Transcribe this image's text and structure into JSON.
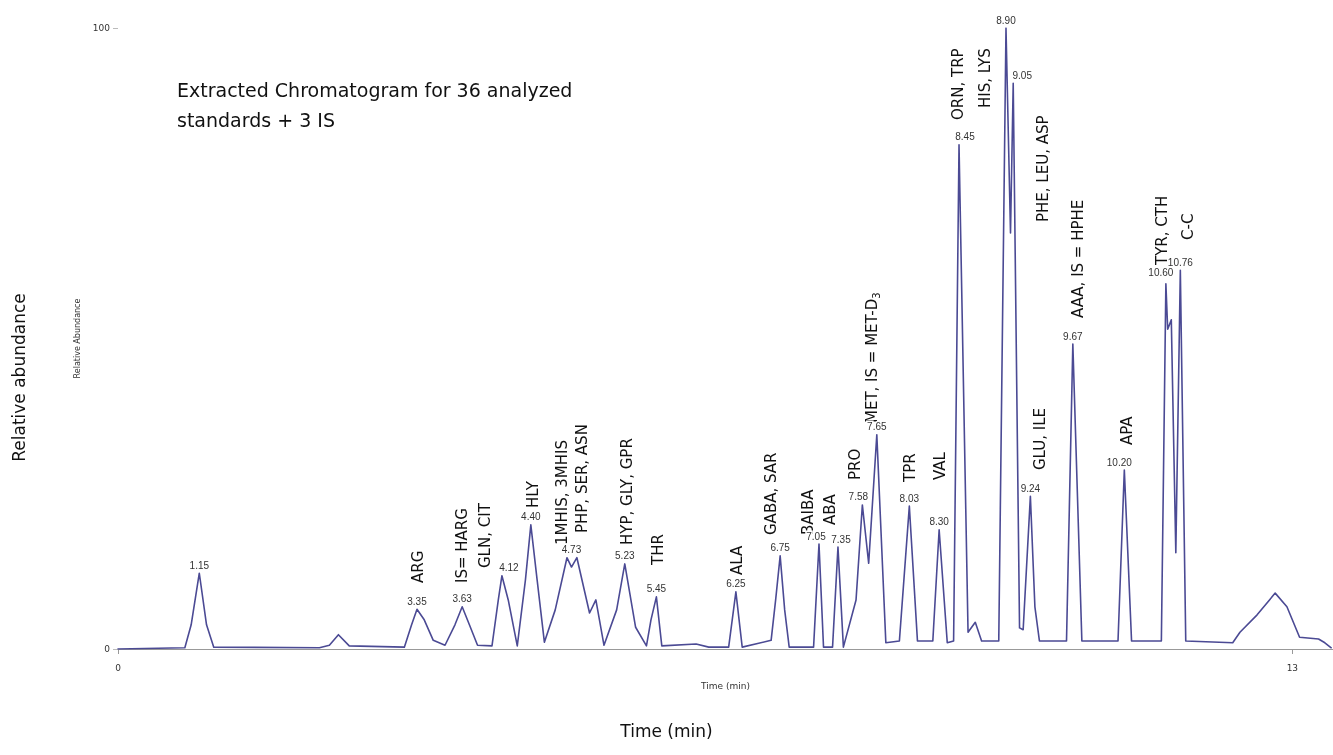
{
  "chart_data": {
    "type": "line",
    "title": "Extracted Chromatogram for 36 analyzed standards + 3 IS",
    "xlabel": "Time (min)",
    "ylabel": "Relative Abundance",
    "color": "#4b4a94",
    "xlim": [
      0,
      13.45
    ],
    "xticks": [
      0,
      13
    ],
    "ylim": [
      0,
      100
    ],
    "yticks": [
      0,
      100
    ],
    "x": [
      0,
      0.74,
      0.81,
      0.9,
      0.98,
      1.06,
      2.23,
      2.34,
      2.44,
      2.56,
      3.17,
      3.25,
      3.31,
      3.39,
      3.49,
      3.62,
      3.73,
      3.81,
      3.89,
      3.98,
      4.14,
      4.21,
      4.25,
      4.32,
      4.42,
      4.51,
      4.57,
      4.64,
      4.72,
      4.84,
      4.97,
      5.02,
      5.08,
      5.22,
      5.29,
      5.38,
      5.52,
      5.61,
      5.73,
      5.85,
      5.9,
      5.96,
      6.02,
      6.4,
      6.54,
      6.76,
      6.84,
      6.91,
      7.23,
      7.28,
      7.33,
      7.38,
      7.43,
      7.7,
      7.76,
      7.81,
      7.91,
      7.97,
      8.03,
      8.17,
      8.24,
      8.31,
      8.4,
      8.5,
      8.65,
      8.76,
      8.85,
      9.02,
      9.09,
      9.18,
      9.25,
      9.31,
      9.41,
      9.49,
      9.56,
      9.75,
      9.83,
      9.88,
      9.91,
      9.98,
      10.02,
      10.1,
      10.15,
      10.2,
      10.5,
      10.57,
      10.67,
      11.07,
      11.14,
      11.22,
      11.55,
      11.6,
      11.62,
      11.66,
      11.71,
      11.76,
      11.82,
      12.34,
      12.42,
      12.61,
      12.81,
      12.94,
      13.08,
      13.29,
      13.36,
      13.43
    ],
    "values": [
      0,
      0.2,
      3.9,
      12.2,
      3.9,
      0.3,
      0.2,
      0.6,
      2.3,
      0.5,
      0.3,
      3.9,
      6.4,
      4.7,
      1.4,
      0.6,
      3.9,
      6.8,
      3.9,
      0.6,
      0.5,
      7.9,
      11.8,
      7.9,
      0.5,
      11.1,
      20,
      11.1,
      1.1,
      6.3,
      14.7,
      13.2,
      14.7,
      5.8,
      7.9,
      0.6,
      6.3,
      13.7,
      3.5,
      0.5,
      4.7,
      8.4,
      0.5,
      0.8,
      0.3,
      0.3,
      9.2,
      0.3,
      1.4,
      7.9,
      15,
      6.3,
      0.3,
      0.3,
      16.9,
      0.3,
      0.3,
      16.4,
      0.3,
      7.9,
      23.2,
      13.8,
      34.5,
      1,
      1.3,
      23,
      1.3,
      1.3,
      19.2,
      1,
      1.3,
      81.2,
      2.7,
      4.3,
      1.3,
      1.3,
      100,
      67,
      91.1,
      3.4,
      3.1,
      24.6,
      6.8,
      1.3,
      1.3,
      49.1,
      1.3,
      1.3,
      28.8,
      1.3,
      1.3,
      58.8,
      51.5,
      53,
      15.5,
      61,
      1.3,
      1,
      2.7,
      5.5,
      9,
      6.8,
      1.9,
      1.6,
      1,
      0.2
    ],
    "annotations": [
      "Time (min)",
      "Relative abundance",
      {
        "text": "1.15",
        "x": 0.9,
        "y": 12.2
      },
      {
        "text": "3.35",
        "x": 3.31,
        "y": 6.4
      },
      {
        "text": "3.63",
        "x": 3.81,
        "y": 6.8
      },
      {
        "text": "4.12",
        "x": 4.25,
        "y": 11.8
      },
      {
        "text": "4.40",
        "x": 4.57,
        "y": 20
      },
      {
        "text": "4.73",
        "x": 5.02,
        "y": 14.7
      },
      {
        "text": "5.23",
        "x": 5.61,
        "y": 13.7
      },
      {
        "text": "5.45",
        "x": 5.96,
        "y": 8.4
      },
      {
        "text": "6.25",
        "x": 6.84,
        "y": 9.2
      },
      {
        "text": "6.75",
        "x": 7.33,
        "y": 15
      },
      {
        "text": "7.05",
        "x": 7.76,
        "y": 16.9
      },
      {
        "text": "7.35",
        "x": 7.97,
        "y": 16.4
      },
      {
        "text": "7.58",
        "x": 8.24,
        "y": 23.2
      },
      {
        "text": "7.65",
        "x": 8.4,
        "y": 34.5
      },
      {
        "text": "8.03",
        "x": 8.76,
        "y": 23
      },
      {
        "text": "8.30",
        "x": 9.09,
        "y": 19.2
      },
      {
        "text": "8.45",
        "x": 9.31,
        "y": 81.2
      },
      {
        "text": "8.90",
        "x": 9.83,
        "y": 100
      },
      {
        "text": "9.05",
        "x": 9.91,
        "y": 91.1
      },
      {
        "text": "9.24",
        "x": 10.1,
        "y": 24.6
      },
      {
        "text": "9.67",
        "x": 10.57,
        "y": 49.1
      },
      {
        "text": "10.20",
        "x": 11.14,
        "y": 28.8
      },
      {
        "text": "10.60",
        "x": 11.6,
        "y": 58.8
      },
      {
        "text": "10.76",
        "x": 11.76,
        "y": 61
      },
      "ARG",
      "IS= HARG",
      "GLN, CIT",
      "HLY",
      "1MHIS, 3MHIS",
      "PHP, SER, ASN",
      "HYP, GLY, GPR",
      "THR",
      "ALA",
      "GABA, SAR",
      "BAIBA",
      "ABA",
      "PRO",
      "MET, IS = MET-D$_{3}$",
      "TPR",
      "VAL",
      "ORN, TRP",
      "HIS, LYS",
      "PHE, LEU, ASP",
      "GLU, ILE",
      "AAA, IS = HPHE",
      "APA",
      "TYR, CTH",
      "C-C"
    ]
  }
}
